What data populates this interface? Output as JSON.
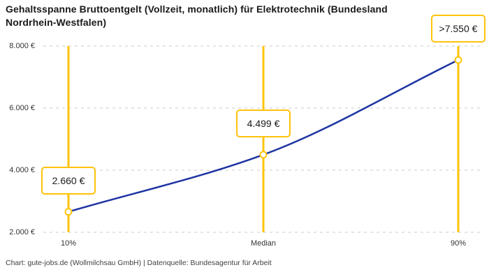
{
  "title": "Gehaltsspanne Bruttoentgelt (Vollzeit, monatlich) für Elektrotechnik (Bundesland Nordrhein-Westfalen)",
  "footer": "Chart: gute-jobs.de (Wollmilchsau GmbH) | Datenquelle: Bundesagentur für Arbeit",
  "chart_data": {
    "type": "line",
    "title": "Gehaltsspanne Bruttoentgelt (Vollzeit, monatlich) für Elektrotechnik (Bundesland Nordrhein-Westfalen)",
    "categories": [
      "10%",
      "Median",
      "90%"
    ],
    "values": [
      2660,
      4499,
      7550
    ],
    "point_labels": [
      "2.660 €",
      "4.499 €",
      ">7.550 €"
    ],
    "y_ticks": [
      {
        "value": 2000,
        "label": "2.000 €"
      },
      {
        "value": 4000,
        "label": "4.000 €"
      },
      {
        "value": 6000,
        "label": "6.000 €"
      },
      {
        "value": 8000,
        "label": "8.000 €"
      }
    ],
    "ylim": [
      2000,
      8000
    ],
    "xlabel": "",
    "ylabel": "",
    "grid": "horizontal-dashed",
    "legend": "none",
    "colors": {
      "line": "#1e35a3",
      "accent": "#ffc30b",
      "grid": "#cbcbcb",
      "marker_fill": "#ffffff",
      "text": "#1a1a1a"
    }
  }
}
